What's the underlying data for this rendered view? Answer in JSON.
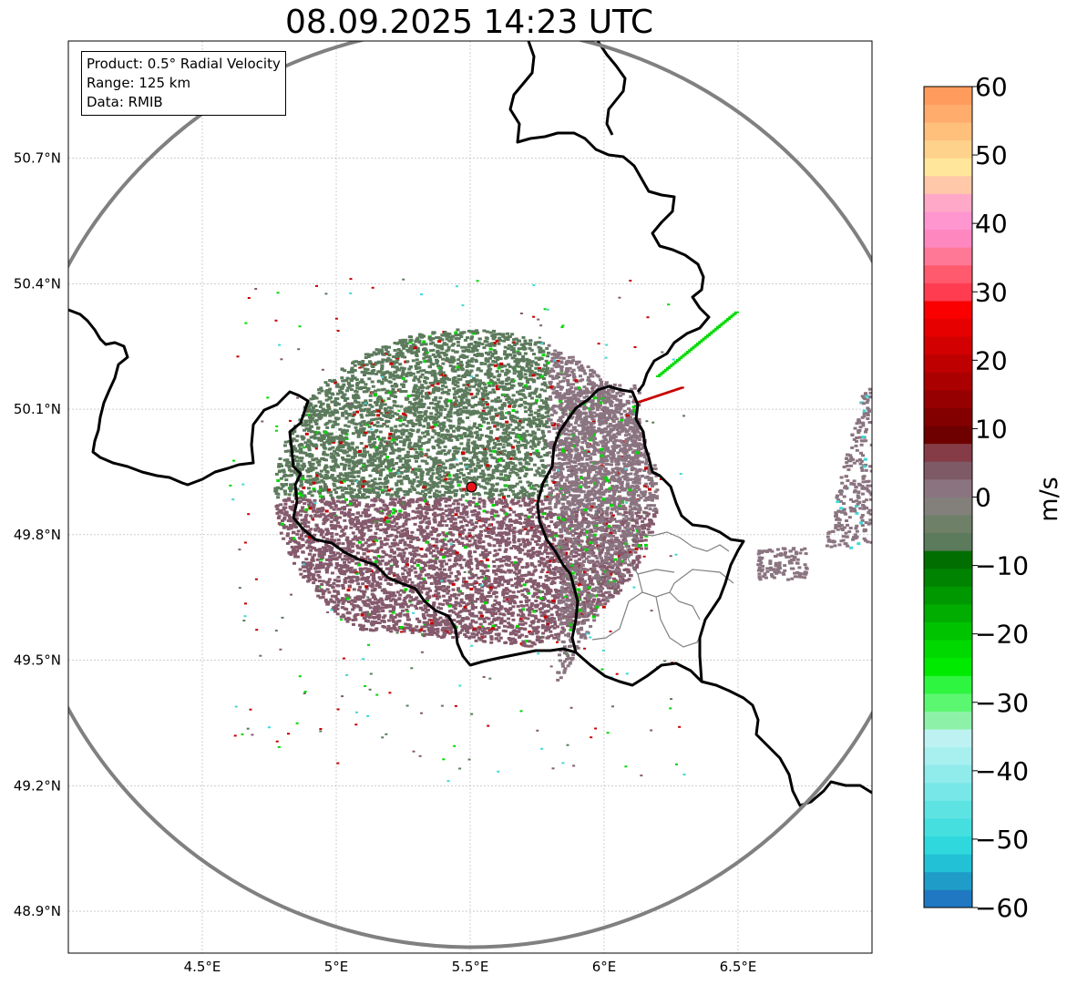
{
  "title": "08.09.2025 14:23 UTC",
  "info": {
    "product": "Product: 0.5° Radial Velocity",
    "range": "Range: 125 km",
    "source": "Data: RMIB"
  },
  "map": {
    "lon_range": [
      4.0,
      7.0
    ],
    "lat_range": [
      48.8,
      50.98
    ],
    "x_ticks": [
      4.5,
      5.0,
      5.5,
      6.0,
      6.5
    ],
    "x_tick_labels": [
      "4.5°E",
      "5°E",
      "5.5°E",
      "6°E",
      "6.5°E"
    ],
    "y_ticks": [
      48.9,
      49.2,
      49.5,
      49.8,
      50.1,
      50.4,
      50.7
    ],
    "y_tick_labels": [
      "48.9°N",
      "49.2°N",
      "49.5°N",
      "49.8°N",
      "50.1°N",
      "50.4°N",
      "50.7°N"
    ],
    "radar_site": {
      "lon": 5.505,
      "lat": 49.914
    },
    "range_ring_color": "#808080",
    "border_color": "#000000",
    "province_color": "#808080",
    "site_color": "#e8141c"
  },
  "colorbar": {
    "label": "m/s",
    "range": [
      -60,
      60
    ],
    "ticks": [
      60,
      50,
      40,
      30,
      20,
      10,
      0,
      -10,
      -20,
      -30,
      -40,
      -50,
      -60
    ],
    "tick_labels": [
      "60",
      "50",
      "40",
      "30",
      "20",
      "10",
      "0",
      "−10",
      "−20",
      "−30",
      "−40",
      "−50",
      "−60"
    ],
    "colors_bottom_to_top": [
      "#1f78c1",
      "#1f9dc8",
      "#22c1d6",
      "#2ed8dc",
      "#45dfe0",
      "#5ee3e3",
      "#78e7e7",
      "#90ebeb",
      "#a8efef",
      "#bef2f2",
      "#8df2a8",
      "#5cf770",
      "#2ef540",
      "#00ea00",
      "#00d900",
      "#00c300",
      "#00ad00",
      "#009800",
      "#008300",
      "#006e00",
      "#5c7a5c",
      "#6e8068",
      "#83807c",
      "#8a7480",
      "#7e5a66",
      "#853c46",
      "#6e0000",
      "#820000",
      "#960000",
      "#aa0000",
      "#be0000",
      "#d20000",
      "#e60000",
      "#fa0000",
      "#ff3c50",
      "#ff5a6e",
      "#ff7896",
      "#ff87c0",
      "#ff96d0",
      "#ffa8c8",
      "#ffc8a8",
      "#ffe69b",
      "#ffd28c",
      "#ffc07c",
      "#ffac6c",
      "#ff9b5c"
    ]
  },
  "echo_colors": {
    "north": "#5c7a5c",
    "south": "#845a6c",
    "east": "#8a7480",
    "red": "#c80000",
    "green": "#00d900",
    "cyan": "#40d8d8"
  }
}
